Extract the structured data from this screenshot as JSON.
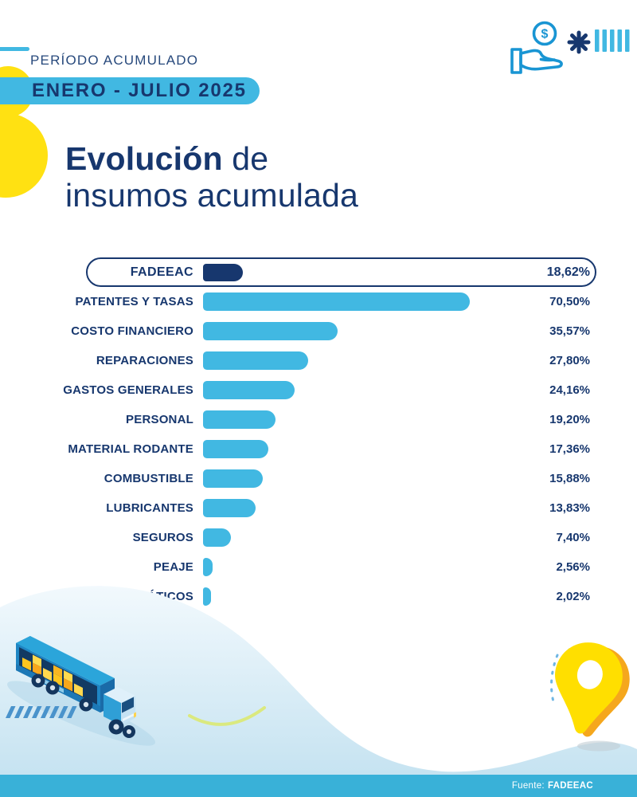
{
  "header": {
    "period_label": "PERÍODO ACUMULADO",
    "period_value": "ENERO - JULIO 2025",
    "coin_symbol": "$"
  },
  "title": {
    "emphasis": "Evolución",
    "rest": " de",
    "line2": "insumos acumulada"
  },
  "chart_data": {
    "type": "bar",
    "orientation": "horizontal",
    "unit": "%",
    "title": "Evolución de insumos acumulada",
    "period": "ENERO - JULIO 2025",
    "xlim": [
      0,
      75
    ],
    "bar_color": "#41b8e2",
    "highlight_bar_color": "#17376e",
    "highlight": {
      "label": "FADEEAC",
      "value": 18.62,
      "display": "18,62%"
    },
    "rows": [
      {
        "label": "PATENTES Y TASAS",
        "value": 70.5,
        "display": "70,50%"
      },
      {
        "label": "COSTO FINANCIERO",
        "value": 35.57,
        "display": "35,57%"
      },
      {
        "label": "REPARACIONES",
        "value": 27.8,
        "display": "27,80%"
      },
      {
        "label": "GASTOS GENERALES",
        "value": 24.16,
        "display": "24,16%"
      },
      {
        "label": "PERSONAL",
        "value": 19.2,
        "display": "19,20%"
      },
      {
        "label": "MATERIAL RODANTE",
        "value": 17.36,
        "display": "17,36%"
      },
      {
        "label": "COMBUSTIBLE",
        "value": 15.88,
        "display": "15,88%"
      },
      {
        "label": "LUBRICANTES",
        "value": 13.83,
        "display": "13,83%"
      },
      {
        "label": "SEGUROS",
        "value": 7.4,
        "display": "7,40%"
      },
      {
        "label": "PEAJE",
        "value": 2.56,
        "display": "2,56%"
      },
      {
        "label": "NEUMÁTICOS",
        "value": 2.02,
        "display": "2,02%"
      }
    ]
  },
  "footer": {
    "source_prefix": "Fuente:",
    "source_name": "FADEEAC"
  },
  "icons": {
    "top_right": [
      "hand-coin-icon",
      "asterisk-icon",
      "tally-bars-icon"
    ],
    "bottom": [
      "cargo-truck-illustration",
      "map-pin-illustration"
    ]
  },
  "colors": {
    "navy": "#17376e",
    "light_blue": "#41b8e2",
    "footer_blue": "#39b1d8",
    "yellow": "#ffe112",
    "pin_yellow": "#ffdf00",
    "pin_orange": "#f5a71d",
    "wave_blue": "#c6e3f1"
  }
}
